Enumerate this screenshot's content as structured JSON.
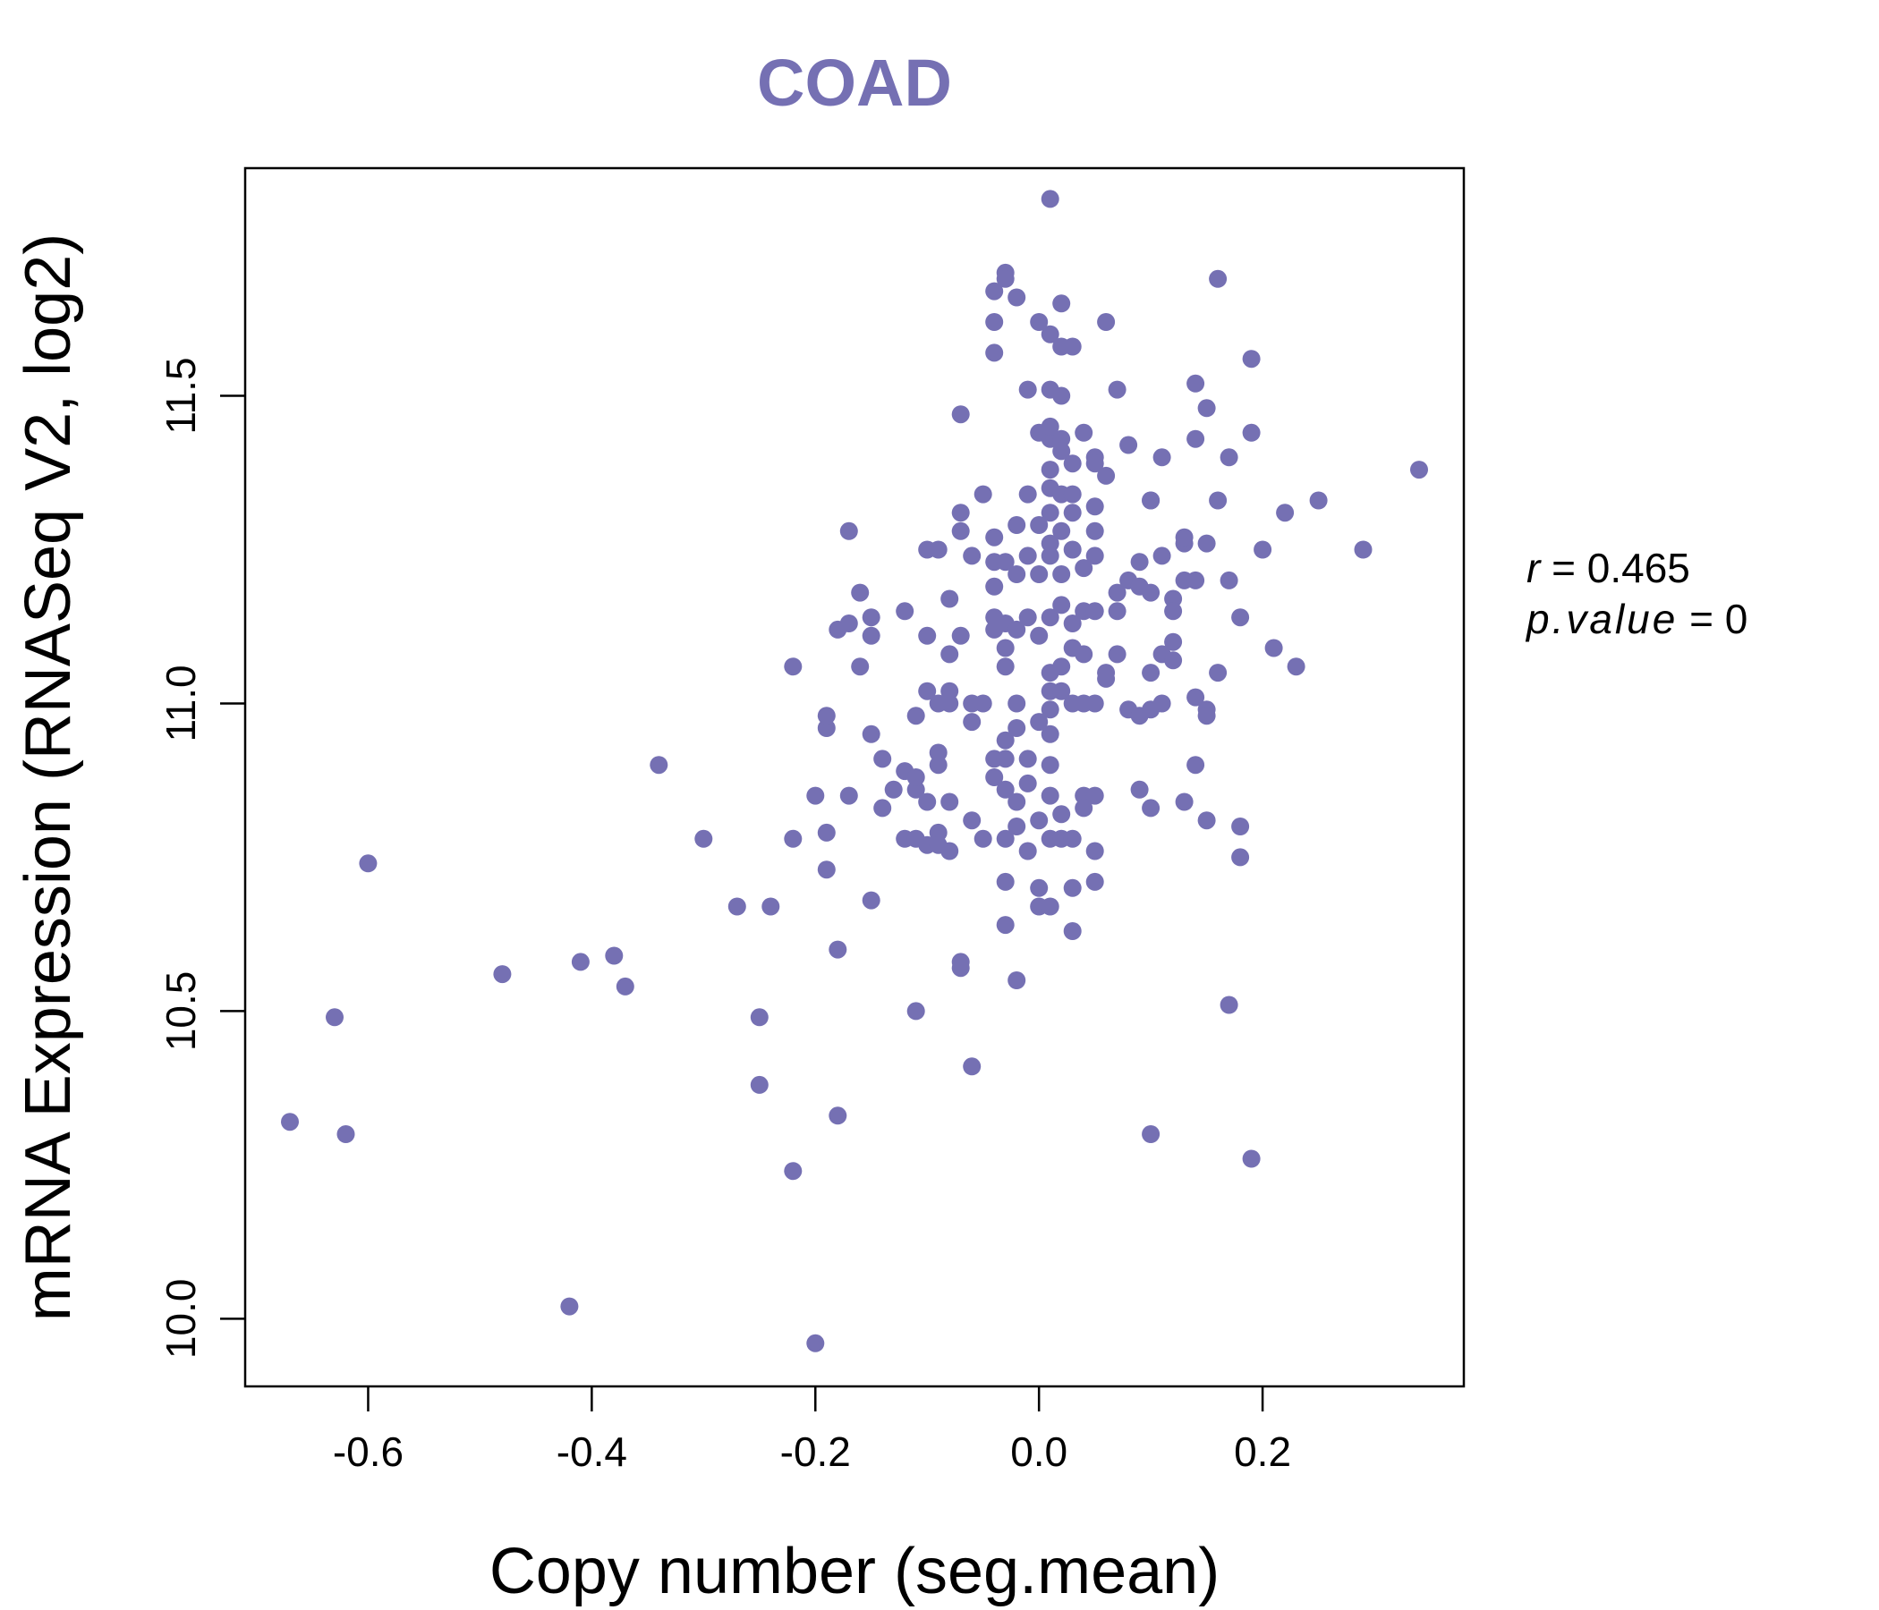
{
  "chart_data": {
    "type": "scatter",
    "title": "COAD",
    "xlabel": "Copy number (seg.mean)",
    "ylabel": "mRNA Expression (RNASeq V2, log2)",
    "xlim": [
      -0.71,
      0.38
    ],
    "ylim": [
      9.89,
      11.87
    ],
    "xticks": [
      -0.6,
      -0.4,
      -0.2,
      0.0,
      0.2
    ],
    "xtick_labels": [
      "-0.6",
      "-0.4",
      "-0.2",
      "0.0",
      "0.2"
    ],
    "yticks": [
      10.0,
      10.5,
      11.0,
      11.5
    ],
    "ytick_labels": [
      "10.0",
      "10.5",
      "11.0",
      "11.5"
    ],
    "point_color": "#7570b3",
    "title_color": "#7570b3",
    "stats": {
      "r_label": "r",
      "r_value": "0.465",
      "p_label": "p.value",
      "p_value": "0"
    },
    "points": [
      [
        -0.67,
        10.32
      ],
      [
        -0.63,
        10.49
      ],
      [
        -0.62,
        10.3
      ],
      [
        -0.6,
        10.74
      ],
      [
        -0.48,
        10.56
      ],
      [
        -0.42,
        10.02
      ],
      [
        -0.41,
        10.58
      ],
      [
        -0.38,
        10.59
      ],
      [
        -0.37,
        10.54
      ],
      [
        -0.34,
        10.9
      ],
      [
        -0.3,
        10.78
      ],
      [
        -0.27,
        10.67
      ],
      [
        -0.24,
        10.67
      ],
      [
        -0.25,
        10.49
      ],
      [
        -0.25,
        10.38
      ],
      [
        -0.22,
        10.24
      ],
      [
        -0.22,
        10.78
      ],
      [
        -0.22,
        11.06
      ],
      [
        -0.2,
        9.96
      ],
      [
        -0.2,
        10.85
      ],
      [
        -0.19,
        10.79
      ],
      [
        -0.19,
        10.73
      ],
      [
        -0.19,
        10.96
      ],
      [
        -0.19,
        10.98
      ],
      [
        -0.18,
        11.12
      ],
      [
        -0.18,
        10.6
      ],
      [
        -0.18,
        10.33
      ],
      [
        -0.17,
        11.13
      ],
      [
        -0.17,
        11.28
      ],
      [
        -0.17,
        10.85
      ],
      [
        -0.16,
        11.06
      ],
      [
        -0.16,
        11.18
      ],
      [
        -0.15,
        11.14
      ],
      [
        -0.15,
        10.95
      ],
      [
        -0.15,
        11.11
      ],
      [
        -0.14,
        10.91
      ],
      [
        -0.14,
        10.83
      ],
      [
        -0.15,
        10.68
      ],
      [
        -0.13,
        10.86
      ],
      [
        -0.12,
        10.78
      ],
      [
        -0.12,
        10.89
      ],
      [
        -0.12,
        11.15
      ],
      [
        -0.11,
        10.86
      ],
      [
        -0.11,
        10.98
      ],
      [
        -0.11,
        10.88
      ],
      [
        -0.11,
        10.78
      ],
      [
        -0.1,
        11.02
      ],
      [
        -0.1,
        11.11
      ],
      [
        -0.1,
        10.77
      ],
      [
        -0.1,
        10.84
      ],
      [
        -0.1,
        11.25
      ],
      [
        -0.09,
        11.25
      ],
      [
        -0.09,
        10.9
      ],
      [
        -0.09,
        10.79
      ],
      [
        -0.09,
        10.77
      ],
      [
        -0.09,
        10.92
      ],
      [
        -0.09,
        11.0
      ],
      [
        -0.08,
        11.0
      ],
      [
        -0.08,
        11.02
      ],
      [
        -0.08,
        11.17
      ],
      [
        -0.08,
        10.76
      ],
      [
        -0.08,
        10.84
      ],
      [
        -0.08,
        11.08
      ],
      [
        -0.07,
        11.11
      ],
      [
        -0.07,
        11.28
      ],
      [
        -0.07,
        11.31
      ],
      [
        -0.07,
        11.47
      ],
      [
        -0.07,
        10.57
      ],
      [
        -0.07,
        10.58
      ],
      [
        -0.11,
        10.5
      ],
      [
        -0.06,
        10.81
      ],
      [
        -0.06,
        10.97
      ],
      [
        -0.06,
        11.0
      ],
      [
        -0.06,
        11.24
      ],
      [
        -0.06,
        10.41
      ],
      [
        -0.05,
        11.34
      ],
      [
        -0.05,
        10.78
      ],
      [
        -0.05,
        11.0
      ],
      [
        -0.04,
        10.88
      ],
      [
        -0.04,
        10.91
      ],
      [
        -0.04,
        11.12
      ],
      [
        -0.04,
        11.14
      ],
      [
        -0.04,
        11.19
      ],
      [
        -0.04,
        11.23
      ],
      [
        -0.04,
        11.27
      ],
      [
        -0.04,
        11.57
      ],
      [
        -0.04,
        11.62
      ],
      [
        -0.04,
        11.67
      ],
      [
        -0.03,
        11.7
      ],
      [
        -0.03,
        11.69
      ],
      [
        -0.03,
        10.64
      ],
      [
        -0.03,
        10.71
      ],
      [
        -0.03,
        10.78
      ],
      [
        -0.03,
        10.86
      ],
      [
        -0.03,
        10.91
      ],
      [
        -0.03,
        10.94
      ],
      [
        -0.03,
        11.06
      ],
      [
        -0.03,
        11.09
      ],
      [
        -0.03,
        11.13
      ],
      [
        -0.03,
        11.23
      ],
      [
        -0.02,
        11.29
      ],
      [
        -0.02,
        11.12
      ],
      [
        -0.02,
        10.8
      ],
      [
        -0.02,
        10.84
      ],
      [
        -0.02,
        10.96
      ],
      [
        -0.02,
        11.0
      ],
      [
        -0.02,
        10.55
      ],
      [
        -0.02,
        11.66
      ],
      [
        -0.02,
        11.21
      ],
      [
        -0.01,
        11.34
      ],
      [
        -0.01,
        11.14
      ],
      [
        -0.01,
        10.76
      ],
      [
        -0.01,
        10.87
      ],
      [
        -0.01,
        10.91
      ],
      [
        -0.01,
        11.24
      ],
      [
        -0.01,
        11.51
      ],
      [
        0.0,
        11.62
      ],
      [
        0.0,
        11.44
      ],
      [
        0.0,
        11.29
      ],
      [
        0.0,
        11.21
      ],
      [
        0.0,
        10.97
      ],
      [
        0.0,
        10.81
      ],
      [
        0.0,
        10.7
      ],
      [
        0.0,
        10.67
      ],
      [
        0.0,
        11.11
      ],
      [
        0.01,
        11.6
      ],
      [
        0.01,
        11.51
      ],
      [
        0.01,
        11.43
      ],
      [
        0.01,
        11.24
      ],
      [
        0.01,
        11.14
      ],
      [
        0.01,
        11.05
      ],
      [
        0.01,
        10.99
      ],
      [
        0.01,
        11.82
      ],
      [
        0.01,
        11.02
      ],
      [
        0.01,
        10.67
      ],
      [
        0.01,
        10.85
      ],
      [
        0.01,
        10.78
      ],
      [
        0.01,
        10.9
      ],
      [
        0.01,
        10.95
      ],
      [
        0.01,
        11.26
      ],
      [
        0.01,
        11.35
      ],
      [
        0.01,
        11.45
      ],
      [
        0.01,
        11.38
      ],
      [
        0.01,
        11.31
      ],
      [
        0.02,
        11.58
      ],
      [
        0.02,
        11.5
      ],
      [
        0.02,
        11.43
      ],
      [
        0.02,
        11.34
      ],
      [
        0.02,
        11.28
      ],
      [
        0.02,
        11.21
      ],
      [
        0.02,
        11.16
      ],
      [
        0.02,
        11.06
      ],
      [
        0.02,
        11.02
      ],
      [
        0.02,
        10.82
      ],
      [
        0.02,
        10.78
      ],
      [
        0.02,
        11.65
      ],
      [
        0.02,
        11.41
      ],
      [
        0.03,
        11.39
      ],
      [
        0.03,
        11.31
      ],
      [
        0.03,
        11.25
      ],
      [
        0.03,
        11.13
      ],
      [
        0.03,
        11.09
      ],
      [
        0.03,
        11.0
      ],
      [
        0.03,
        10.78
      ],
      [
        0.03,
        10.7
      ],
      [
        0.03,
        10.63
      ],
      [
        0.03,
        11.58
      ],
      [
        0.03,
        11.34
      ],
      [
        0.04,
        11.44
      ],
      [
        0.04,
        11.22
      ],
      [
        0.04,
        11.08
      ],
      [
        0.04,
        10.85
      ],
      [
        0.04,
        10.83
      ],
      [
        0.04,
        11.0
      ],
      [
        0.04,
        11.15
      ],
      [
        0.05,
        10.76
      ],
      [
        0.05,
        11.4
      ],
      [
        0.05,
        11.0
      ],
      [
        0.05,
        11.24
      ],
      [
        0.05,
        11.15
      ],
      [
        0.05,
        11.28
      ],
      [
        0.05,
        11.32
      ],
      [
        0.05,
        10.85
      ],
      [
        0.05,
        10.71
      ],
      [
        0.05,
        11.39
      ],
      [
        0.06,
        11.37
      ],
      [
        0.06,
        11.62
      ],
      [
        0.06,
        11.04
      ],
      [
        0.06,
        11.05
      ],
      [
        0.07,
        11.15
      ],
      [
        0.07,
        11.08
      ],
      [
        0.07,
        11.18
      ],
      [
        0.07,
        11.51
      ],
      [
        0.08,
        11.2
      ],
      [
        0.08,
        10.99
      ],
      [
        0.08,
        11.42
      ],
      [
        0.09,
        10.86
      ],
      [
        0.09,
        10.98
      ],
      [
        0.09,
        11.19
      ],
      [
        0.09,
        11.23
      ],
      [
        0.1,
        11.18
      ],
      [
        0.1,
        10.99
      ],
      [
        0.1,
        11.05
      ],
      [
        0.1,
        10.83
      ],
      [
        0.1,
        10.3
      ],
      [
        0.1,
        11.33
      ],
      [
        0.1,
        11.33
      ],
      [
        0.11,
        11.24
      ],
      [
        0.11,
        11.4
      ],
      [
        0.11,
        11.08
      ],
      [
        0.11,
        11.0
      ],
      [
        0.12,
        11.1
      ],
      [
        0.12,
        11.07
      ],
      [
        0.12,
        11.17
      ],
      [
        0.12,
        11.15
      ],
      [
        0.13,
        11.2
      ],
      [
        0.13,
        11.26
      ],
      [
        0.13,
        11.27
      ],
      [
        0.13,
        10.84
      ],
      [
        0.14,
        10.9
      ],
      [
        0.14,
        11.01
      ],
      [
        0.14,
        11.2
      ],
      [
        0.14,
        11.43
      ],
      [
        0.14,
        11.52
      ],
      [
        0.15,
        11.48
      ],
      [
        0.15,
        10.99
      ],
      [
        0.15,
        10.98
      ],
      [
        0.15,
        11.26
      ],
      [
        0.15,
        10.81
      ],
      [
        0.16,
        11.33
      ],
      [
        0.16,
        11.05
      ],
      [
        0.16,
        11.69
      ],
      [
        0.17,
        11.2
      ],
      [
        0.17,
        11.4
      ],
      [
        0.17,
        10.51
      ],
      [
        0.18,
        11.14
      ],
      [
        0.18,
        10.8
      ],
      [
        0.18,
        10.75
      ],
      [
        0.19,
        11.44
      ],
      [
        0.19,
        11.56
      ],
      [
        0.19,
        10.26
      ],
      [
        0.2,
        11.25
      ],
      [
        0.21,
        11.09
      ],
      [
        0.22,
        11.31
      ],
      [
        0.23,
        11.06
      ],
      [
        0.25,
        11.33
      ],
      [
        0.29,
        11.25
      ],
      [
        0.34,
        11.38
      ]
    ]
  }
}
